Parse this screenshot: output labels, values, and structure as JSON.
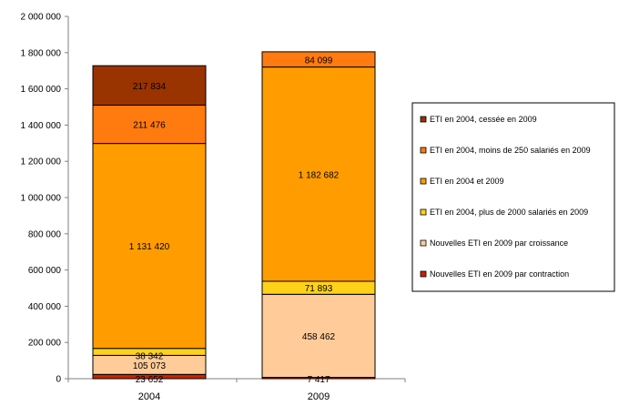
{
  "chart_data": {
    "type": "bar",
    "stacked": true,
    "categories": [
      "2004",
      "2009"
    ],
    "ylim": [
      0,
      2000000
    ],
    "yticks": [
      0,
      200000,
      400000,
      600000,
      800000,
      1000000,
      1200000,
      1400000,
      1600000,
      1800000,
      2000000
    ],
    "ytick_labels": [
      "0",
      "200 000",
      "400 000",
      "600 000",
      "800 000",
      "1 000 000",
      "1 200 000",
      "1 400 000",
      "1 600 000",
      "1 800 000",
      "2 000 000"
    ],
    "grid": false,
    "legend_position": "right",
    "series": [
      {
        "name": "Nouvelles ETI en 2009 par contraction",
        "color": "#CC2200",
        "values": [
          23652,
          7417
        ],
        "labels": [
          "23 652",
          "7 417"
        ]
      },
      {
        "name": "Nouvelles ETI en 2009 par croissance",
        "color": "#FFCC99",
        "values": [
          105073,
          458462
        ],
        "labels": [
          "105 073",
          "458 462"
        ]
      },
      {
        "name": "ETI en 2004, plus de 2000 salariés en 2009",
        "color": "#FFD21A",
        "values": [
          38342,
          71893
        ],
        "labels": [
          "38 342",
          "71 893"
        ]
      },
      {
        "name": "ETI en 2004 et 2009",
        "color": "#FF9D00",
        "values": [
          1131420,
          1182682
        ],
        "labels": [
          "1 131 420",
          "1 182 682"
        ]
      },
      {
        "name": "ETI en 2004, moins de 250 salariés en 2009",
        "color": "#FF7A0F",
        "values": [
          211476,
          84099
        ],
        "labels": [
          "211 476",
          "84 099"
        ]
      },
      {
        "name": "ETI en 2004, cessée en 2009",
        "color": "#993300",
        "values": [
          217834,
          0
        ],
        "labels": [
          "217 834",
          ""
        ]
      }
    ],
    "legend_order": [
      5,
      4,
      3,
      2,
      1,
      0
    ]
  }
}
